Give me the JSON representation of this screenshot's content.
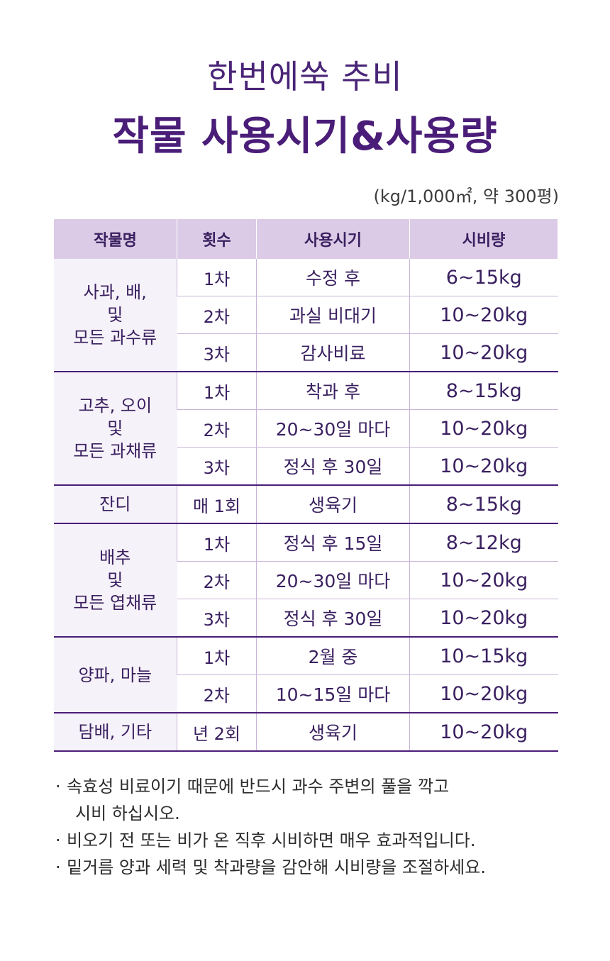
{
  "title": {
    "line1": "한번에쑥 추비",
    "line2": "작물 사용시기&사용량"
  },
  "unit_note": "(kg/1,000㎡, 약 300평)",
  "table": {
    "headers": [
      "작물명",
      "횟수",
      "사용시기",
      "시비량"
    ],
    "groups": [
      {
        "crop_lines": [
          "사과, 배,",
          "및",
          "모든 과수류"
        ],
        "rows": [
          {
            "count": "1차",
            "timing": "수정 후",
            "amount": "6~15kg"
          },
          {
            "count": "2차",
            "timing": "과실 비대기",
            "amount": "10~20kg"
          },
          {
            "count": "3차",
            "timing": "감사비료",
            "amount": "10~20kg"
          }
        ]
      },
      {
        "crop_lines": [
          "고추, 오이",
          "및",
          "모든 과채류"
        ],
        "rows": [
          {
            "count": "1차",
            "timing": "착과 후",
            "amount": "8~15kg"
          },
          {
            "count": "2차",
            "timing": "20~30일 마다",
            "amount": "10~20kg"
          },
          {
            "count": "3차",
            "timing": "정식 후 30일",
            "amount": "10~20kg"
          }
        ]
      },
      {
        "crop_lines": [
          "잔디"
        ],
        "rows": [
          {
            "count": "매 1회",
            "timing": "생육기",
            "amount": "8~15kg"
          }
        ]
      },
      {
        "crop_lines": [
          "배추",
          "및",
          "모든 엽채류"
        ],
        "rows": [
          {
            "count": "1차",
            "timing": "정식 후 15일",
            "amount": "8~12kg"
          },
          {
            "count": "2차",
            "timing": "20~30일 마다",
            "amount": "10~20kg"
          },
          {
            "count": "3차",
            "timing": "정식 후 30일",
            "amount": "10~20kg"
          }
        ]
      },
      {
        "crop_lines": [
          "양파, 마늘"
        ],
        "rows": [
          {
            "count": "1차",
            "timing": "2월 중",
            "amount": "10~15kg"
          },
          {
            "count": "2차",
            "timing": "10~15일 마다",
            "amount": "10~20kg"
          }
        ]
      },
      {
        "crop_lines": [
          "담배, 기타"
        ],
        "rows": [
          {
            "count": "년 2회",
            "timing": "생육기",
            "amount": "10~20kg"
          }
        ]
      }
    ]
  },
  "notes": [
    {
      "bullet": "·",
      "lines": [
        "속효성 비료이기 때문에 반드시 과수 주변의 풀을 깍고",
        "시비 하십시오."
      ]
    },
    {
      "bullet": "·",
      "lines": [
        "비오기 전 또는 비가 온 직후 시비하면 매우 효과적입니다."
      ]
    },
    {
      "bullet": "·",
      "lines": [
        "밑거름 양과 세력 및 착과량을 감안해 시비량을 조절하세요."
      ]
    }
  ]
}
